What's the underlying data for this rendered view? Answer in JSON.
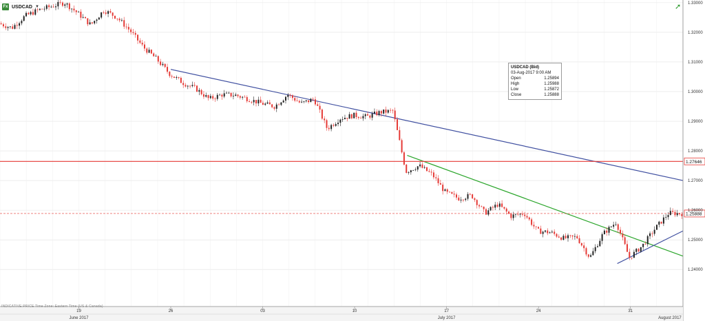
{
  "header": {
    "symbol": "USDCAD",
    "icon": "fx-icon",
    "dropdown_icon": "caret-down-icon",
    "tool_icon": "trend-arrow-icon"
  },
  "tooltip": {
    "title": "USDCAD (Bid)",
    "datetime": "03-Aug-2017 9:00 AM",
    "rows": [
      {
        "label": "Open",
        "value": "1.25894"
      },
      {
        "label": "High",
        "value": "1.25988"
      },
      {
        "label": "Low",
        "value": "1.25872"
      },
      {
        "label": "Close",
        "value": "1.25888"
      }
    ]
  },
  "footer_note": "INDICATIVE PRICE   Time Zone: Eastern Time (US & Canada)",
  "colors": {
    "up": "#222222",
    "down": "#e53935",
    "hline": "#e53935",
    "blue": "#3f4fa0",
    "green": "#2aa52a",
    "grid": "#e2e2e2"
  },
  "chart_data": {
    "type": "candlestick",
    "title": "",
    "xlabel": "",
    "ylabel": "",
    "timeframe": "hourly",
    "ylim": [
      1.2275,
      1.3309
    ],
    "y_ticks": [
      1.24,
      1.25,
      1.26,
      1.27,
      1.28,
      1.29,
      1.3,
      1.31,
      1.32,
      1.33
    ],
    "y_tick_labels": [
      "1.24000",
      "1.25000",
      "1.26000",
      "1.27000",
      "1.28000",
      "1.29000",
      "1.30000",
      "1.31000",
      "1.32000",
      "1.33000"
    ],
    "x_tick_labels": [
      {
        "label": "19",
        "date": "2017-06-19"
      },
      {
        "label": "26",
        "date": "2017-06-26"
      },
      {
        "label": "03",
        "date": "2017-07-03"
      },
      {
        "label": "10",
        "date": "2017-07-10"
      },
      {
        "label": "17",
        "date": "2017-07-17"
      },
      {
        "label": "24",
        "date": "2017-07-24"
      },
      {
        "label": "31",
        "date": "2017-07-31"
      }
    ],
    "x_month_labels": [
      {
        "label": "June 2017",
        "date": "2017-06-19"
      },
      {
        "label": "July 2017",
        "date": "2017-07-17"
      },
      {
        "label": "August 2017",
        "date": "2017-08-03"
      }
    ],
    "x_range": [
      "2017-06-13",
      "2017-08-04"
    ],
    "grid": true,
    "path": [
      [
        "2017-06-13",
        1.323
      ],
      [
        "2017-06-14",
        1.3215
      ],
      [
        "2017-06-15",
        1.3255
      ],
      [
        "2017-06-16",
        1.3275
      ],
      [
        "2017-06-18",
        1.33
      ],
      [
        "2017-06-19",
        1.3265
      ],
      [
        "2017-06-20",
        1.3225
      ],
      [
        "2017-06-21",
        1.3275
      ],
      [
        "2017-06-22",
        1.325
      ],
      [
        "2017-06-23",
        1.3205
      ],
      [
        "2017-06-24",
        1.315
      ],
      [
        "2017-06-25",
        1.311
      ],
      [
        "2017-06-26",
        1.306
      ],
      [
        "2017-06-27",
        1.303
      ],
      [
        "2017-06-28",
        1.301
      ],
      [
        "2017-06-29",
        1.2975
      ],
      [
        "2017-06-30",
        1.299
      ],
      [
        "2017-07-01",
        1.2988
      ],
      [
        "2017-07-02",
        1.2975
      ],
      [
        "2017-07-03",
        1.296
      ],
      [
        "2017-07-04",
        1.295
      ],
      [
        "2017-07-05",
        1.299
      ],
      [
        "2017-07-06",
        1.296
      ],
      [
        "2017-07-07",
        1.2975
      ],
      [
        "2017-07-08",
        1.2875
      ],
      [
        "2017-07-09",
        1.291
      ],
      [
        "2017-07-10",
        1.292
      ],
      [
        "2017-07-11",
        1.2915
      ],
      [
        "2017-07-12",
        1.293
      ],
      [
        "2017-07-13",
        1.2935
      ],
      [
        "2017-07-14",
        1.273
      ],
      [
        "2017-07-15",
        1.275
      ],
      [
        "2017-07-16",
        1.272
      ],
      [
        "2017-07-17",
        1.266
      ],
      [
        "2017-07-18",
        1.264
      ],
      [
        "2017-07-19",
        1.265
      ],
      [
        "2017-07-20",
        1.259
      ],
      [
        "2017-07-21",
        1.262
      ],
      [
        "2017-07-22",
        1.258
      ],
      [
        "2017-07-23",
        1.259
      ],
      [
        "2017-07-24",
        1.253
      ],
      [
        "2017-07-25",
        1.2525
      ],
      [
        "2017-07-26",
        1.2505
      ],
      [
        "2017-07-27",
        1.251
      ],
      [
        "2017-07-28",
        1.244
      ],
      [
        "2017-07-29",
        1.252
      ],
      [
        "2017-07-30",
        1.256
      ],
      [
        "2017-07-31",
        1.244
      ],
      [
        "2017-08-01",
        1.248
      ],
      [
        "2017-08-02",
        1.254
      ],
      [
        "2017-08-03",
        1.259
      ],
      [
        "2017-08-04",
        1.2589
      ]
    ],
    "horizontal_lines": [
      {
        "value": 1.27646,
        "label": "1.27646",
        "color": "#e53935",
        "style": "solid"
      },
      {
        "value": 1.25888,
        "label": "1.25888",
        "color": "#e53935",
        "style": "dashed"
      }
    ],
    "trendlines": [
      {
        "color": "blue",
        "from": [
          "2017-06-26",
          1.3075
        ],
        "to": [
          "2017-08-04",
          1.27
        ]
      },
      {
        "color": "green",
        "from": [
          "2017-07-14",
          1.2785
        ],
        "to": [
          "2017-08-04",
          1.2445
        ]
      },
      {
        "color": "blue",
        "from": [
          "2017-07-30",
          1.242
        ],
        "to": [
          "2017-08-04",
          1.253
        ]
      }
    ]
  }
}
